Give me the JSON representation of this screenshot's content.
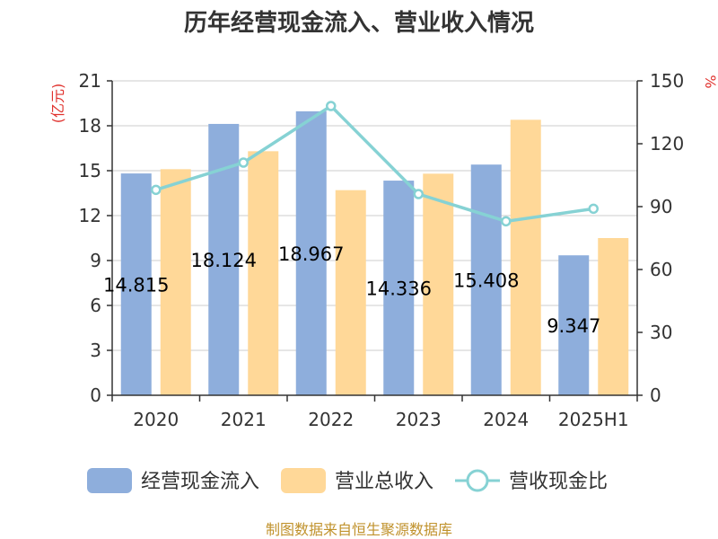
{
  "title": "历年经营现金流入、营业收入情况",
  "source": "制图数据来自恒生聚源数据库",
  "chart_data": {
    "type": "bar",
    "categories": [
      "2020",
      "2021",
      "2022",
      "2023",
      "2024",
      "2025H1"
    ],
    "series": [
      {
        "name": "经营现金流入",
        "type": "bar",
        "axis": "left",
        "color": "#8eaedc",
        "values": [
          14.815,
          18.124,
          18.967,
          14.336,
          15.408,
          9.347
        ],
        "labels": [
          "14.815",
          "18.124",
          "18.967",
          "14.336",
          "15.408",
          "9.347"
        ]
      },
      {
        "name": "营业总收入",
        "type": "bar",
        "axis": "left",
        "color": "#ffd898",
        "values": [
          15.1,
          16.3,
          13.7,
          14.8,
          18.4,
          10.5
        ]
      },
      {
        "name": "营收现金比",
        "type": "line",
        "axis": "right",
        "color": "#86d2d4",
        "values": [
          98,
          111,
          138,
          96,
          83,
          89
        ]
      }
    ],
    "y_left": {
      "label": "(亿元)",
      "ticks": [
        "0",
        "3",
        "6",
        "9",
        "12",
        "15",
        "18",
        "21"
      ],
      "ylim": [
        0,
        21
      ]
    },
    "y_right": {
      "label": "%",
      "ticks": [
        "0",
        "30",
        "60",
        "90",
        "120",
        "150"
      ],
      "ylim": [
        0,
        150
      ]
    },
    "grid": true,
    "legend_position": "bottom"
  }
}
